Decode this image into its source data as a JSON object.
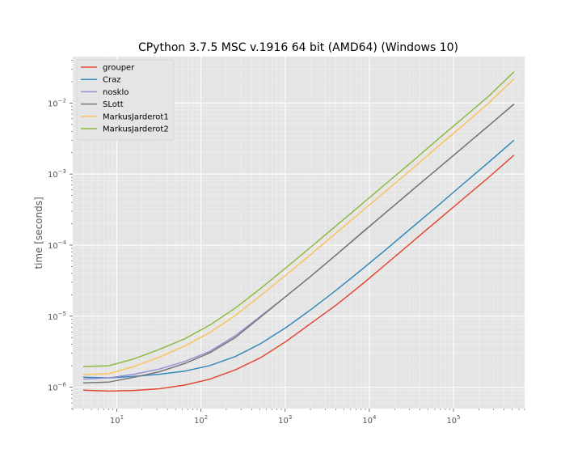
{
  "chart_data": {
    "type": "line",
    "title": "CPython 3.7.5 MSC v.1916 64 bit (AMD64) (Windows 10)",
    "xlabel": "",
    "ylabel": "time [seconds]",
    "xscale": "log",
    "yscale": "log",
    "xlim": [
      3,
      700000
    ],
    "ylim": [
      5e-07,
      0.045
    ],
    "grid": true,
    "legend_position": "top-left",
    "x_ticks": [
      {
        "value": 10,
        "base": "10",
        "exp": "1"
      },
      {
        "value": 100,
        "base": "10",
        "exp": "2"
      },
      {
        "value": 1000,
        "base": "10",
        "exp": "3"
      },
      {
        "value": 10000,
        "base": "10",
        "exp": "4"
      },
      {
        "value": 100000,
        "base": "10",
        "exp": "5"
      }
    ],
    "y_ticks": [
      {
        "value": 1e-06,
        "base": "10",
        "exp": "−6"
      },
      {
        "value": 1e-05,
        "base": "10",
        "exp": "−5"
      },
      {
        "value": 0.0001,
        "base": "10",
        "exp": "−4"
      },
      {
        "value": 0.001,
        "base": "10",
        "exp": "−3"
      },
      {
        "value": 0.01,
        "base": "10",
        "exp": "−2"
      }
    ],
    "x": [
      4,
      8,
      16,
      32,
      64,
      128,
      256,
      512,
      1024,
      2048,
      4096,
      8192,
      16384,
      32768,
      65536,
      131072,
      262144,
      524288
    ],
    "series": [
      {
        "name": "grouper",
        "color": "#e24a33",
        "values": [
          9.1e-07,
          8.8e-07,
          9e-07,
          9.5e-07,
          1.07e-06,
          1.3e-06,
          1.75e-06,
          2.6e-06,
          4.4e-06,
          8e-06,
          1.45e-05,
          2.8e-05,
          5.6e-05,
          0.000112,
          0.000225,
          0.00045,
          0.0009,
          0.00185
        ]
      },
      {
        "name": "Craz",
        "color": "#348abd",
        "values": [
          1.38e-06,
          1.35e-06,
          1.42e-06,
          1.52e-06,
          1.68e-06,
          2.02e-06,
          2.7e-06,
          4.1e-06,
          6.9e-06,
          1.25e-05,
          2.35e-05,
          4.55e-05,
          9e-05,
          0.00018,
          0.00036,
          0.00073,
          0.00147,
          0.003
        ]
      },
      {
        "name": "nosklo",
        "color": "#988ed5",
        "values": [
          1.3e-06,
          1.35e-06,
          1.52e-06,
          1.8e-06,
          2.3e-06,
          3.2e-06,
          5.3e-06,
          1e-05,
          1.9e-05,
          3.7e-05,
          7.4e-05,
          0.000148,
          0.0003,
          0.0006,
          0.0012,
          0.0024,
          0.0048,
          0.0096
        ]
      },
      {
        "name": "SLott",
        "color": "#777777",
        "values": [
          1.15e-06,
          1.18e-06,
          1.38e-06,
          1.65e-06,
          2.15e-06,
          3.05e-06,
          5e-06,
          9.7e-06,
          1.9e-05,
          3.7e-05,
          7.4e-05,
          0.00015,
          0.0003,
          0.0006,
          0.0012,
          0.0024,
          0.0048,
          0.0097
        ]
      },
      {
        "name": "MarkusJarderot1",
        "color": "#fbc15e",
        "values": [
          1.5e-06,
          1.55e-06,
          1.95e-06,
          2.65e-06,
          3.8e-06,
          5.9e-06,
          1.02e-05,
          1.95e-05,
          3.8e-05,
          7.5e-05,
          0.00015,
          0.0003,
          0.0006,
          0.0012,
          0.00245,
          0.0049,
          0.01,
          0.022
        ]
      },
      {
        "name": "MarkusJarderot2",
        "color": "#8eba42",
        "values": [
          1.95e-06,
          2e-06,
          2.5e-06,
          3.4e-06,
          4.8e-06,
          7.5e-06,
          1.3e-05,
          2.45e-05,
          4.8e-05,
          9.5e-05,
          0.00019,
          0.00038,
          0.00076,
          0.00152,
          0.0031,
          0.0062,
          0.0125,
          0.0275
        ]
      }
    ]
  }
}
